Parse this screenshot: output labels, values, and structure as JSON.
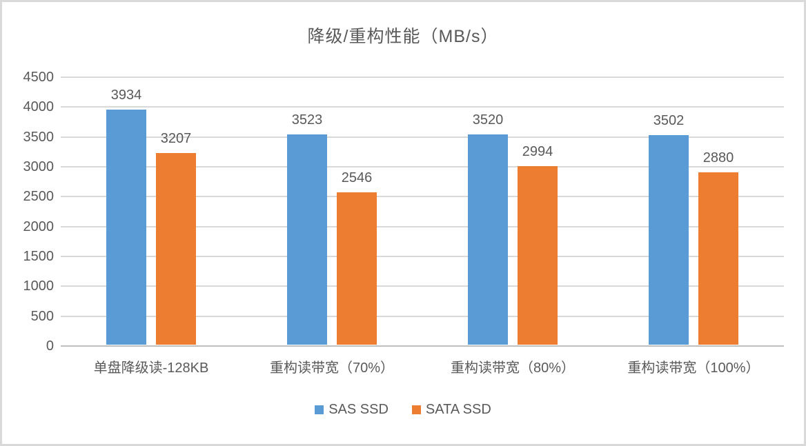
{
  "chart_data": {
    "type": "bar",
    "title": "降级/重构性能（MB/s）",
    "categories": [
      "单盘降级读-128KB",
      "重构读带宽（70%）",
      "重构读带宽（80%）",
      "重构读带宽（100%）"
    ],
    "series": [
      {
        "name": "SAS SSD",
        "color": "#5B9BD5",
        "values": [
          3934,
          3523,
          3520,
          3502
        ]
      },
      {
        "name": "SATA SSD",
        "color": "#ED7D31",
        "values": [
          3207,
          2546,
          2994,
          2880
        ]
      }
    ],
    "ylim": [
      0,
      4500
    ],
    "yticks": [
      0,
      500,
      1000,
      1500,
      2000,
      2500,
      3000,
      3500,
      4000,
      4500
    ],
    "xlabel": "",
    "ylabel": "",
    "grid": true,
    "legend_position": "bottom"
  },
  "colors": {
    "text": "#595959",
    "gridline": "#D9D9D9",
    "axis_baseline": "#BFBFBF",
    "frame_border": "#D9D9D9",
    "background": "#FFFFFF"
  }
}
